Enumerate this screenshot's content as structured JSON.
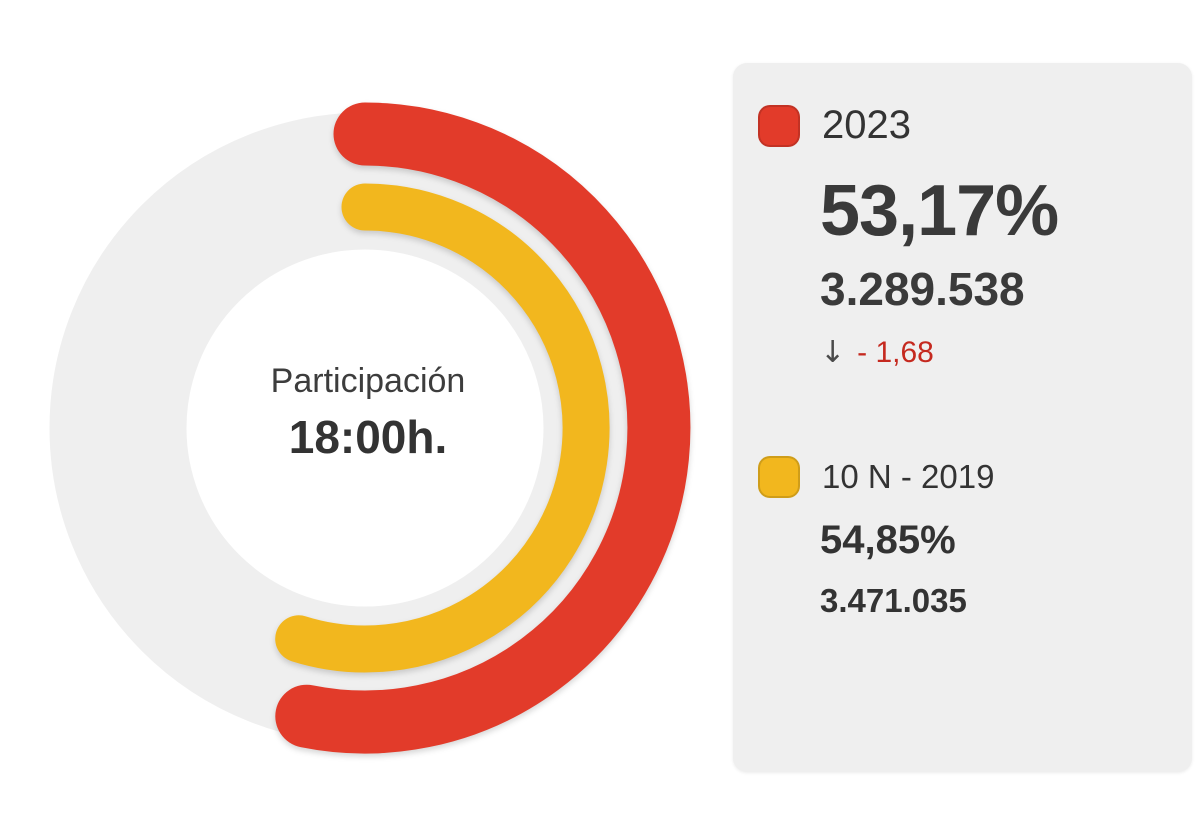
{
  "chart_data": {
    "type": "donut-gauge",
    "title": "Participación 18:00h.",
    "center": {
      "label": "Participación",
      "time": "18:00h."
    },
    "series": [
      {
        "label": "2023",
        "pct": 53.17,
        "pct_display": "53,17%",
        "votes": "3.289.538",
        "delta": "- 1,68",
        "delta_direction": "down",
        "color": "#e23b2a"
      },
      {
        "label": "10 N - 2019",
        "pct": 54.85,
        "pct_display": "54,85%",
        "votes": "3.471.035",
        "color": "#f2b71e"
      }
    ],
    "max_pct": 100,
    "start_angle_deg": 0,
    "track_color": "#efefef",
    "legend_position": "right"
  },
  "legend": {
    "delta_arrow": "↓"
  },
  "colors": {
    "panel_bg": "#efefef",
    "track": "#efefef",
    "red_2023": "#e23b2a",
    "yellow_2019": "#f2b71e",
    "delta_red": "#c5291f",
    "text_dark": "#333333"
  }
}
